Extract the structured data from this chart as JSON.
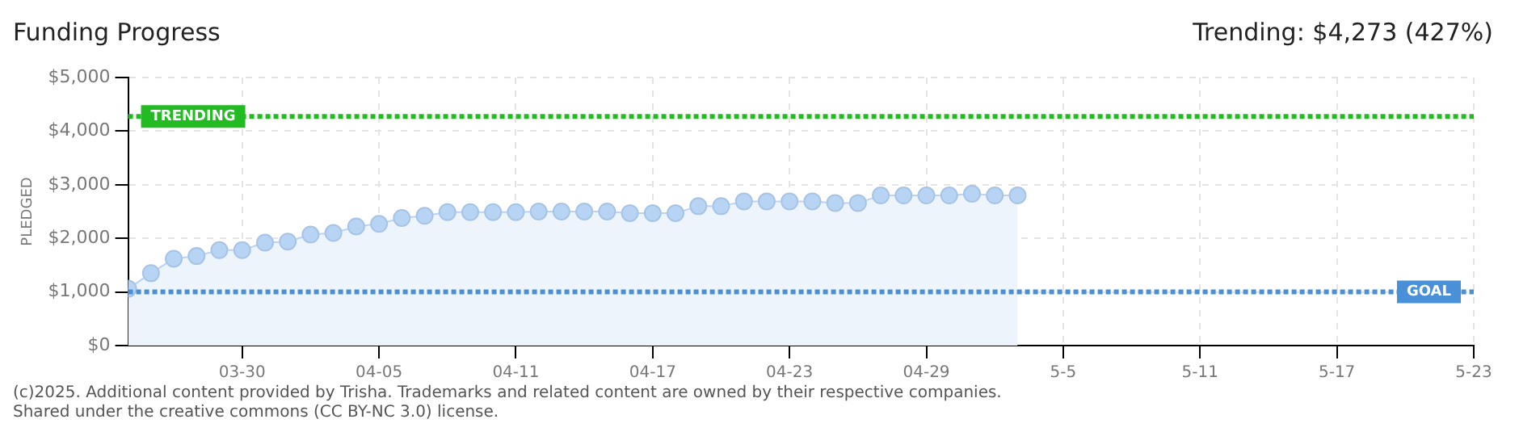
{
  "chart_data": {
    "type": "area",
    "title": "Funding Progress",
    "ylabel": "PLEDGED",
    "annotations": [
      "Trending: $4,273 (427%)",
      "(c)2025. Additional content provided by Trisha. Trademarks and related content are owned by their respective companies.",
      "Shared under the creative commons (CC BY-NC 3.0) license."
    ],
    "x": [
      "--03-25",
      "--03-26",
      "--03-27",
      "--03-28",
      "--03-29",
      "--03-30",
      "--03-31",
      "--04-01",
      "--04-02",
      "--04-03",
      "--04-04",
      "--04-05",
      "--04-06",
      "--04-07",
      "--04-08",
      "--04-09",
      "--04-10",
      "--04-11",
      "--04-12",
      "--04-13",
      "--04-14",
      "--04-15",
      "--04-16",
      "--04-17",
      "--04-18",
      "--04-19",
      "--04-20",
      "--04-21",
      "--04-22",
      "--04-23",
      "--04-24",
      "--04-25",
      "--04-26",
      "--04-27",
      "--04-28",
      "--04-29",
      "--04-30",
      "--05-01",
      "--05-02",
      "--05-03"
    ],
    "series": [
      {
        "color": "#b8d4f5",
        "values": [
          1060,
          1350,
          1620,
          1670,
          1780,
          1780,
          1920,
          1940,
          2070,
          2100,
          2220,
          2270,
          2380,
          2420,
          2490,
          2490,
          2490,
          2490,
          2500,
          2500,
          2500,
          2500,
          2470,
          2470,
          2470,
          2600,
          2600,
          2690,
          2690,
          2690,
          2690,
          2660,
          2660,
          2800,
          2800,
          2800,
          2800,
          2830,
          2800,
          2800
        ]
      }
    ],
    "xlim": [
      "--03-25",
      "--05-23"
    ],
    "xticks": [
      {
        "value": "--03-30",
        "label": "03-30"
      },
      {
        "value": "--04-05",
        "label": "04-05"
      },
      {
        "value": "--04-11",
        "label": "04-11"
      },
      {
        "value": "--04-17",
        "label": "04-17"
      },
      {
        "value": "--04-23",
        "label": "04-23"
      },
      {
        "value": "--04-29",
        "label": "04-29"
      },
      {
        "value": "--05-05",
        "label": "5-5"
      },
      {
        "value": "--05-11",
        "label": "5-11"
      },
      {
        "value": "--05-17",
        "label": "5-17"
      },
      {
        "value": "--05-23",
        "label": "5-23"
      }
    ],
    "ylim": [
      0,
      5000
    ],
    "yticks": [
      {
        "value": 0,
        "label": "$0"
      },
      {
        "value": 1000,
        "label": "$1,000"
      },
      {
        "value": 2000,
        "label": "$2,000"
      },
      {
        "value": 3000,
        "label": "$3,000"
      },
      {
        "value": 4000,
        "label": "$4,000"
      },
      {
        "value": 5000,
        "label": "$5,000"
      }
    ],
    "ref_lines": [
      {
        "axis": "y",
        "value": 4273,
        "label": "TRENDING",
        "color": "#22bb22",
        "line_style": "dotted"
      },
      {
        "axis": "y",
        "value": 1000,
        "label": "GOAL",
        "color": "#4a90d9",
        "line_style": "dotted"
      }
    ],
    "grid": true,
    "legend": false,
    "marker": "circle"
  }
}
